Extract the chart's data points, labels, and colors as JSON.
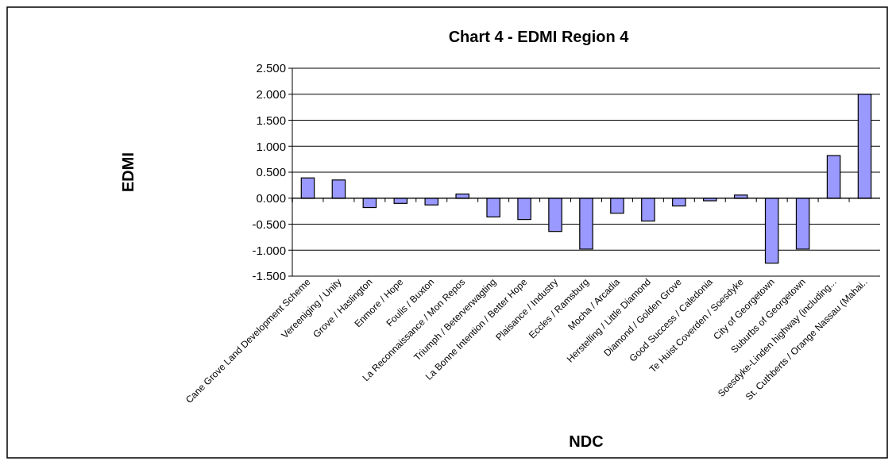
{
  "chart_data": {
    "type": "bar",
    "title": "Chart 4 - EDMI Region 4",
    "xlabel": "NDC",
    "ylabel": "EDMI",
    "categories": [
      "Cane Grove Land Development Scheme",
      "Vereeniging / Unity",
      "Grove / Haslington",
      "Enmore / Hope",
      "Foulis / Buxton",
      "La Reconnaissance / Mon Repos",
      "Triumph / Beterverwagting",
      "La Bonne Intention / Better Hope",
      "Plaisance / Industry",
      "Eccles / Ramsburg",
      "Mocha / Arcadia",
      "Herstelling / Little Diamond",
      "Diamond / Golden Grove",
      "Good Success / Caledonia",
      "Te Huist Coverden / Soesdyke",
      "City of Georgetown",
      "Suburbs of Georgetown",
      "Soesdyke-Linden highway (including...",
      "St. Cuthberts / Orange Nassau (Mahai.."
    ],
    "values": [
      0.39,
      0.35,
      -0.18,
      -0.1,
      -0.13,
      0.08,
      -0.36,
      -0.41,
      -0.64,
      -0.98,
      -0.29,
      -0.44,
      -0.15,
      -0.05,
      0.06,
      -1.25,
      -0.98,
      0.82,
      2.0
    ],
    "color": "#9999ff",
    "ylim": [
      -1.5,
      2.5
    ],
    "yticks": [
      {
        "value": -1.5,
        "label": "-1.500"
      },
      {
        "value": -1,
        "label": "-1.000"
      },
      {
        "value": -0.5,
        "label": "-0.500"
      },
      {
        "value": 0,
        "label": "0.000"
      },
      {
        "value": 0.5,
        "label": "0.500"
      },
      {
        "value": 1,
        "label": "1.000"
      },
      {
        "value": 1.5,
        "label": "1.500"
      },
      {
        "value": 2,
        "label": "2.000"
      },
      {
        "value": 2.5,
        "label": "2.500"
      }
    ],
    "grid": "y"
  }
}
